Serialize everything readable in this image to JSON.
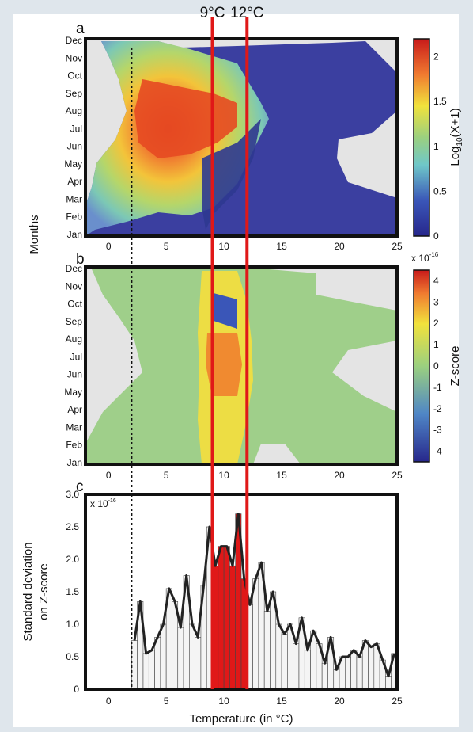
{
  "chart_data": [
    {
      "type": "heatmap",
      "panel_label": "a",
      "y_categories": [
        "Jan",
        "Feb",
        "Mar",
        "Apr",
        "May",
        "Jun",
        "Jul",
        "Aug",
        "Sep",
        "Oct",
        "Nov",
        "Dec"
      ],
      "x_ticks": [
        0,
        5,
        10,
        15,
        20,
        25
      ],
      "xlim": [
        -2,
        25
      ],
      "colorbar": {
        "label": "Log10(X+1)",
        "label_main": "Log",
        "label_sub": "10",
        "label_rest": "(X+1)",
        "ticks": [
          0,
          0.5,
          1.0,
          1.5,
          2.0
        ],
        "range": [
          0,
          2.2
        ]
      },
      "hotspot": {
        "x": 8.5,
        "month": 6.5,
        "value": 2.2
      }
    },
    {
      "type": "heatmap",
      "panel_label": "b",
      "y_categories": [
        "Jan",
        "Feb",
        "Mar",
        "Apr",
        "May",
        "Jun",
        "Jul",
        "Aug",
        "Sep",
        "Oct",
        "Nov",
        "Dec"
      ],
      "x_ticks": [
        0,
        5,
        10,
        15,
        20,
        25
      ],
      "xlim": [
        -2,
        25
      ],
      "colorbar": {
        "label": "Z-score",
        "multiplier": "x 10",
        "multiplier_exp": "-16",
        "ticks": [
          -4,
          -3,
          -2,
          -1,
          0,
          1,
          2,
          3,
          4
        ],
        "range": [
          -4.5,
          4.5
        ]
      }
    },
    {
      "type": "bar",
      "panel_label": "c",
      "multiplier": "x 10",
      "multiplier_exp": "-16",
      "x_ticks": [
        0,
        5,
        10,
        15,
        20,
        25
      ],
      "y_ticks": [
        "0",
        "0.5",
        "1.0",
        "1.5",
        "2.0",
        "2.5",
        "3.0"
      ],
      "xlim": [
        -2,
        25
      ],
      "ylim": [
        0,
        3.0
      ],
      "xlabel": "Temperature (in °C)",
      "ylabel_line1": "Standard deviation",
      "ylabel_line2": "on Z-score",
      "bar_width": 0.5,
      "highlight_range": [
        9,
        12
      ],
      "highlight_color": "#e01818",
      "x": [
        2.25,
        2.75,
        3.25,
        3.75,
        4.25,
        4.75,
        5.25,
        5.75,
        6.25,
        6.75,
        7.25,
        7.75,
        8.25,
        8.75,
        9.25,
        9.75,
        10.25,
        10.75,
        11.25,
        11.75,
        12.25,
        12.75,
        13.25,
        13.75,
        14.25,
        14.75,
        15.25,
        15.75,
        16.25,
        16.75,
        17.25,
        17.75,
        18.25,
        18.75,
        19.25,
        19.75,
        20.25,
        20.75,
        21.25,
        21.75,
        22.25,
        22.75,
        23.25,
        23.75,
        24.25,
        24.75
      ],
      "values": [
        0.75,
        1.35,
        0.55,
        0.6,
        0.8,
        1.0,
        1.55,
        1.35,
        0.95,
        1.75,
        1.0,
        0.8,
        1.6,
        2.5,
        1.9,
        2.2,
        2.2,
        1.9,
        2.7,
        1.7,
        1.3,
        1.7,
        1.95,
        1.2,
        1.5,
        1.0,
        0.85,
        1.0,
        0.7,
        1.1,
        0.6,
        0.9,
        0.7,
        0.4,
        0.8,
        0.3,
        0.5,
        0.5,
        0.6,
        0.5,
        0.75,
        0.65,
        0.7,
        0.45,
        0.2,
        0.55
      ]
    }
  ],
  "reference_lines": [
    {
      "x": 9,
      "label": "9°C",
      "color": "#e01818"
    },
    {
      "x": 12,
      "label": "12°C",
      "color": "#e01818"
    }
  ],
  "months_label": "Months",
  "dashed_line_x": 2,
  "colors": {
    "background": "#dfe6ec",
    "frame": "#111111",
    "empty": "#e4e4e4",
    "bars": "#f4f4f4"
  }
}
